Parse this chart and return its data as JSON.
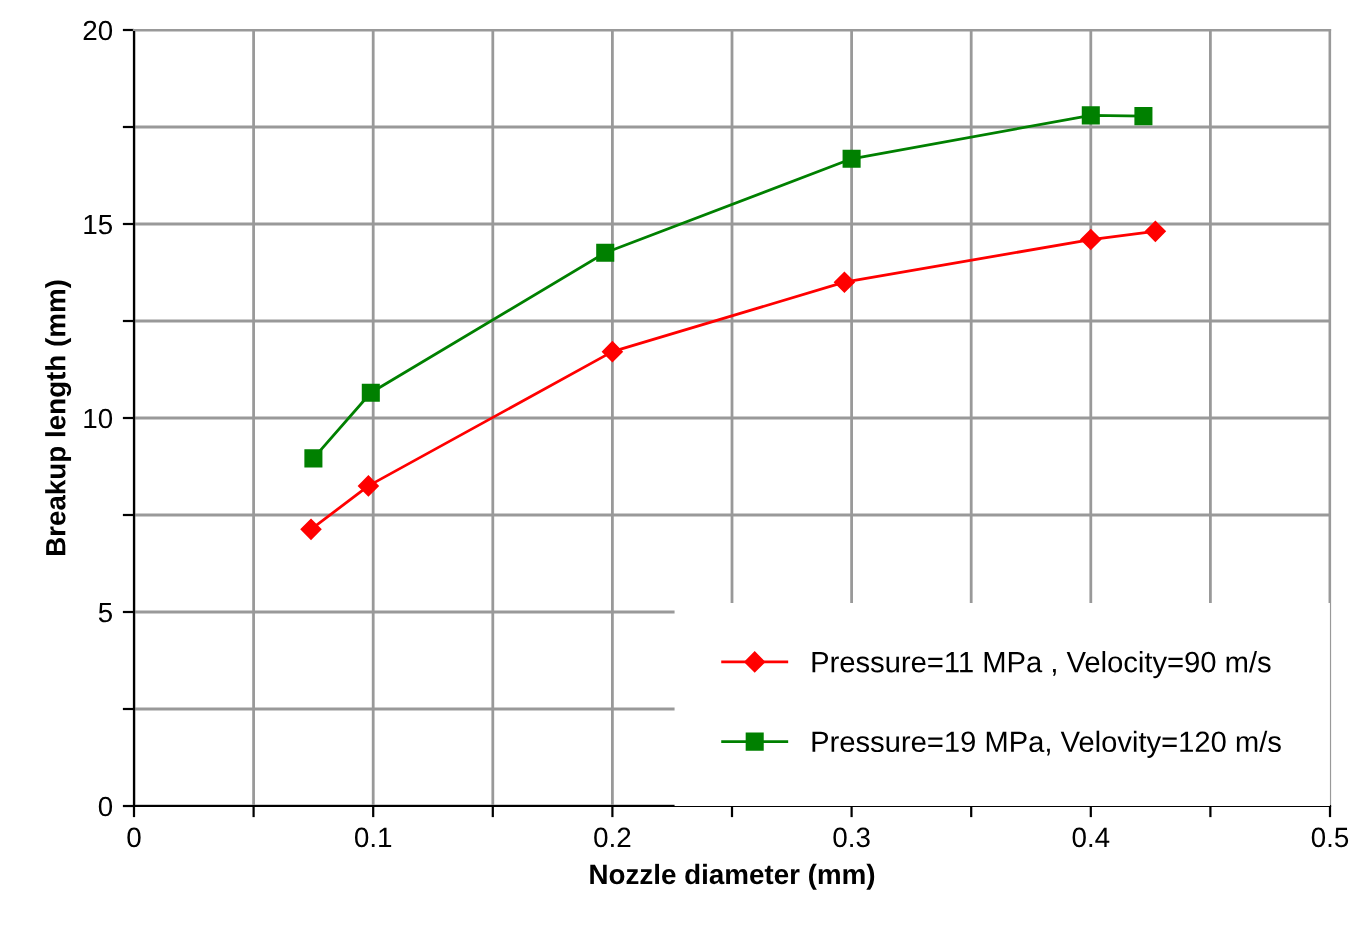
{
  "chart_data": {
    "type": "line",
    "xlabel": "Nozzle diameter (mm)",
    "ylabel": "Breakup length (mm)",
    "xlim": [
      0,
      0.5
    ],
    "ylim": [
      0,
      20
    ],
    "xticks": [
      0,
      {
        "value": 0.05,
        "label": null
      },
      0.1,
      {
        "value": 0.15,
        "label": null
      },
      0.2,
      {
        "value": 0.25,
        "label": null
      },
      0.3,
      {
        "value": 0.35,
        "label": null
      },
      0.4,
      {
        "value": 0.45,
        "label": null
      },
      0.5
    ],
    "yticks": [
      0,
      {
        "value": 2.5,
        "label": null
      },
      5,
      {
        "value": 7.5,
        "label": null
      },
      10,
      {
        "value": 12.5,
        "label": null
      },
      15,
      {
        "value": 17.5,
        "label": null
      },
      20
    ],
    "grid": true,
    "legend": "bottom right",
    "line_style": "solid",
    "series": [
      {
        "name": "Pressure=11 MPa , Velocity=90 m/s",
        "color": "#ff0000",
        "marker": "diamond",
        "x": [
          0.074,
          0.098,
          0.2,
          0.297,
          0.4,
          0.427
        ],
        "values": [
          7.13,
          8.25,
          11.71,
          13.5,
          14.6,
          14.81
        ]
      },
      {
        "name": "Pressure=19 MPa, Velovity=120 m/s",
        "color": "#008000",
        "marker": "square",
        "x": [
          0.075,
          0.099,
          0.197,
          0.3,
          0.4,
          0.422
        ],
        "values": [
          8.96,
          10.65,
          14.26,
          16.68,
          17.8,
          17.78
        ]
      }
    ]
  }
}
